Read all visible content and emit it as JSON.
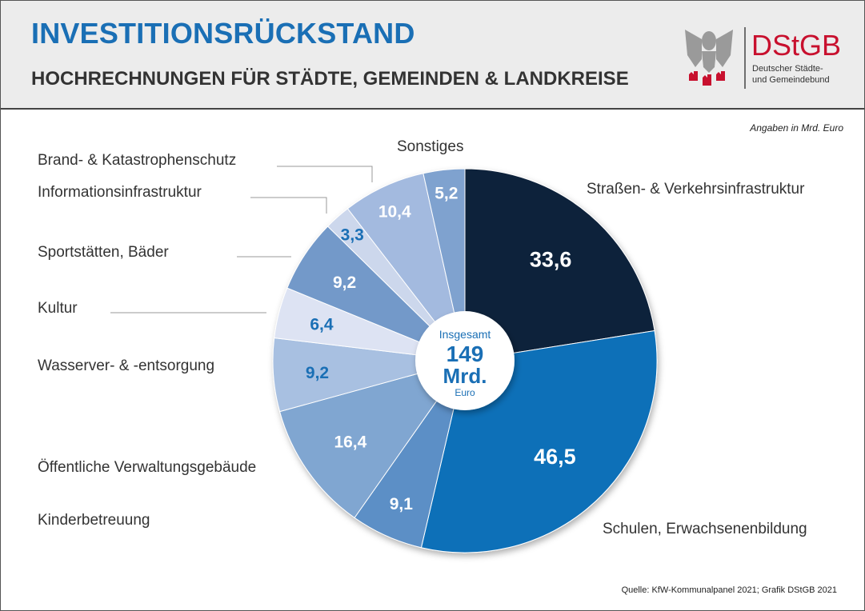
{
  "header": {
    "title": "INVESTITIONSRÜCKSTAND",
    "subtitle": "HOCHRECHNUNGEN FÜR STÄDTE, GEMEINDEN & LANDKREISE"
  },
  "logo": {
    "name": "DStGB",
    "line1": "Deutscher Städte-",
    "line2": "und Gemeindebund",
    "brand_color": "#c8102e"
  },
  "unit_note": "Angaben in Mrd. Euro",
  "source": "Quelle: KfW-Kommunalpanel 2021; Grafik DStGB 2021",
  "chart_data": {
    "type": "pie",
    "title": "",
    "center_label": {
      "top": "Insgesamt",
      "value": "149",
      "unit": "Mrd.",
      "bottom": "Euro"
    },
    "categories": [
      "Straßen- & Verkehrsinfrastruktur",
      "Schulen, Erwachsenenbildung",
      "Kinderbetreuung",
      "Öffentliche Verwaltungsgebäude",
      "Wasserver- & -entsorgung",
      "Kultur",
      "Sportstätten, Bäder",
      "Informationsinfrastruktur",
      "Brand- & Katastrophenschutz",
      "Sonstiges"
    ],
    "values": [
      33.6,
      46.5,
      9.1,
      16.4,
      9.2,
      6.4,
      9.2,
      3.3,
      10.4,
      5.2
    ],
    "value_labels": [
      "33,6",
      "46,5",
      "9,1",
      "16,4",
      "9,2",
      "6,4",
      "9,2",
      "3,3",
      "10,4",
      "5,2"
    ],
    "colors": [
      "#10223a",
      "#1170b8",
      "#5b8fc6",
      "#80a6d1",
      "#a8c0e1",
      "#dde3f3",
      "#7399c9",
      "#ccd7ec",
      "#a3badf",
      "#7fa2cf"
    ],
    "label_colors": [
      "#ffffff",
      "#ffffff",
      "#ffffff",
      "#ffffff",
      "#1a6fb5",
      "#1a6fb5",
      "#ffffff",
      "#1a6fb5",
      "#ffffff",
      "#ffffff"
    ],
    "start": "top",
    "direction": "clockwise"
  }
}
